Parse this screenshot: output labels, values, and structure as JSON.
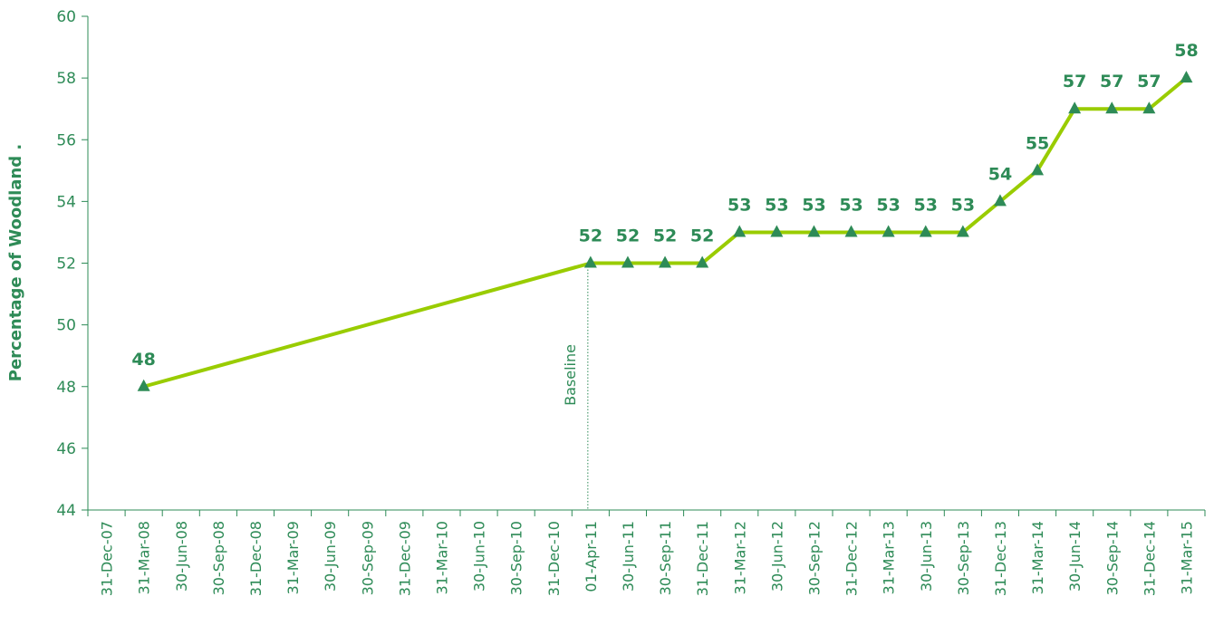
{
  "chart_data": {
    "type": "line",
    "title": "",
    "ylabel": "Percentage of Woodland  .",
    "xlabel": "",
    "ylim": [
      44,
      60
    ],
    "yticks": [
      44,
      46,
      48,
      50,
      52,
      54,
      56,
      58,
      60
    ],
    "categories": [
      "31-Dec-07",
      "31-Mar-08",
      "30-Jun-08",
      "30-Sep-08",
      "31-Dec-08",
      "31-Mar-09",
      "30-Jun-09",
      "30-Sep-09",
      "31-Dec-09",
      "31-Mar-10",
      "30-Jun-10",
      "30-Sep-10",
      "31-Dec-10",
      "01-Apr-11",
      "30-Jun-11",
      "30-Sep-11",
      "31-Dec-11",
      "31-Mar-12",
      "30-Jun-12",
      "30-Sep-12",
      "31-Dec-12",
      "31-Mar-13",
      "30-Jun-13",
      "30-Sep-13",
      "31-Dec-13",
      "31-Mar-14",
      "30-Jun-14",
      "30-Sep-14",
      "31-Dec-14",
      "31-Mar-15"
    ],
    "series": [
      {
        "x": [
          "31-Mar-08",
          "01-Apr-11",
          "30-Jun-11",
          "30-Sep-11",
          "31-Dec-11",
          "31-Mar-12",
          "30-Jun-12",
          "30-Sep-12",
          "31-Dec-12",
          "31-Mar-13",
          "30-Jun-13",
          "30-Sep-13",
          "31-Dec-13",
          "31-Mar-14",
          "30-Jun-14",
          "30-Sep-14",
          "31-Dec-14",
          "31-Mar-15"
        ],
        "values": [
          48,
          52,
          52,
          52,
          52,
          53,
          53,
          53,
          53,
          53,
          53,
          53,
          54,
          55,
          57,
          57,
          57,
          58
        ],
        "line_color": "#99cc00",
        "marker_color": "#2e8b57",
        "marker": "triangle"
      }
    ],
    "annotations": [
      {
        "text": "Baseline",
        "x": "01-Apr-11",
        "style": "dotted-vertical-line"
      }
    ],
    "grid": false,
    "axis_color": "#2e8b57",
    "text_color": "#2e8b57"
  }
}
